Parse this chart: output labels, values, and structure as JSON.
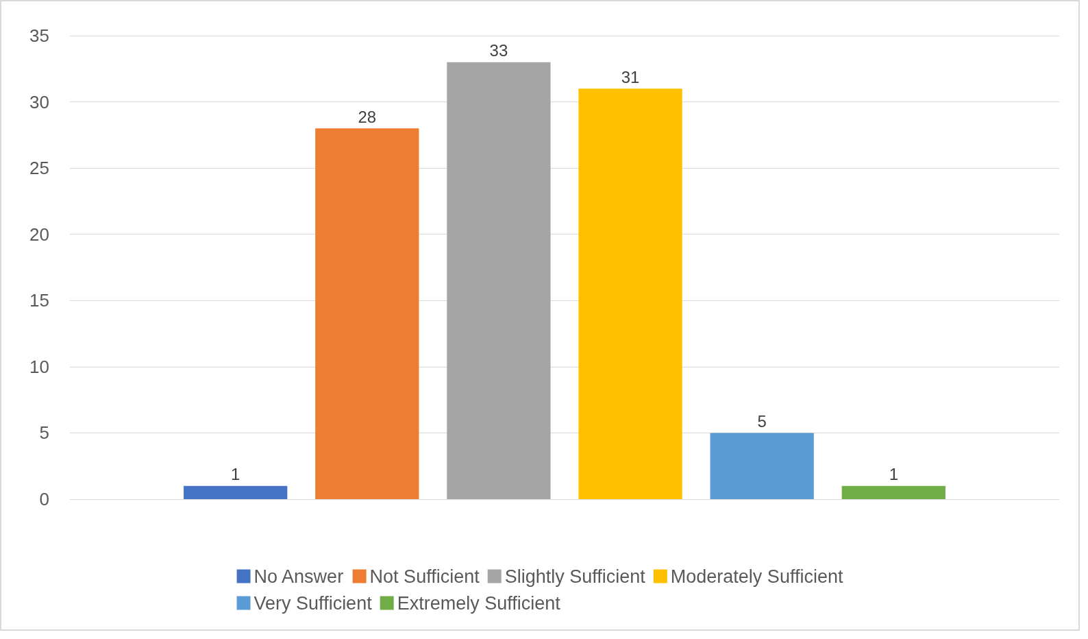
{
  "chart_data": {
    "type": "bar",
    "categories": [
      null
    ],
    "series": [
      {
        "name": "No Answer",
        "color": "#4472c4",
        "values": [
          1
        ]
      },
      {
        "name": "Not Sufficient",
        "color": "#ed7d31",
        "values": [
          28
        ]
      },
      {
        "name": "Slightly Sufficient",
        "color": "#a5a5a5",
        "values": [
          33
        ]
      },
      {
        "name": "Moderately Sufficient",
        "color": "#ffc000",
        "values": [
          31
        ]
      },
      {
        "name": "Very Sufficient",
        "color": "#5b9bd5",
        "values": [
          5
        ]
      },
      {
        "name": "Extremely Sufficient",
        "color": "#70ad47",
        "values": [
          1
        ]
      }
    ],
    "ylim": [
      0,
      35
    ],
    "yticks": [
      0,
      5,
      10,
      15,
      20,
      25,
      30,
      35
    ],
    "grid": "y",
    "legend": "bottom",
    "data_labels": true
  }
}
